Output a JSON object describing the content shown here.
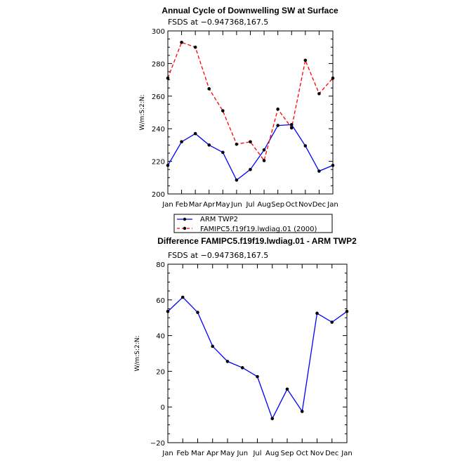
{
  "chart_data": [
    {
      "type": "line",
      "title": "Annual Cycle of Downwelling SW at Surface",
      "subtitle": "FSDS at −0.947368,167.5",
      "ylabel": "W/m:S:2:N:",
      "xlabel": "",
      "categories": [
        "Jan",
        "Feb",
        "Mar",
        "Apr",
        "May",
        "Jun",
        "Jul",
        "Aug",
        "Sep",
        "Oct",
        "Nov",
        "Dec",
        "Jan"
      ],
      "ylim": [
        200,
        300
      ],
      "yticks": [
        200,
        220,
        240,
        260,
        280,
        300
      ],
      "series": [
        {
          "name": "ARM  TWP2",
          "color": "#0000ff",
          "dash": "solid",
          "values": [
            217.5,
            232,
            237,
            230,
            225.5,
            208.5,
            215,
            227,
            242,
            242.5,
            229.5,
            214,
            217.5
          ]
        },
        {
          "name": "FAMIPC5.f19f19.lwdiag.01 (2000)",
          "color": "#ff0000",
          "dash": "dashed",
          "values": [
            271,
            293,
            290,
            264.5,
            251,
            230.5,
            232,
            220.5,
            252,
            240.5,
            282,
            261.5,
            271
          ]
        }
      ],
      "legend_position": "bottom"
    },
    {
      "type": "line",
      "title": "Difference FAMIPC5.f19f19.lwdiag.01 - ARM TWP2",
      "subtitle": "FSDS at −0.947368,167.5",
      "ylabel": "W/m:S:2:N:",
      "xlabel": "",
      "categories": [
        "Jan",
        "Feb",
        "Mar",
        "Apr",
        "May",
        "Jun",
        "Jul",
        "Aug",
        "Sep",
        "Oct",
        "Nov",
        "Dec",
        "Jan"
      ],
      "ylim": [
        -20,
        80
      ],
      "yticks": [
        -20,
        0,
        20,
        40,
        60,
        80
      ],
      "series": [
        {
          "color": "#0000ff",
          "dash": "solid",
          "values": [
            53.5,
            61.5,
            53,
            34,
            25.5,
            22,
            17,
            -6.5,
            10,
            -2.5,
            52.5,
            47.5,
            53.5
          ]
        }
      ]
    }
  ]
}
